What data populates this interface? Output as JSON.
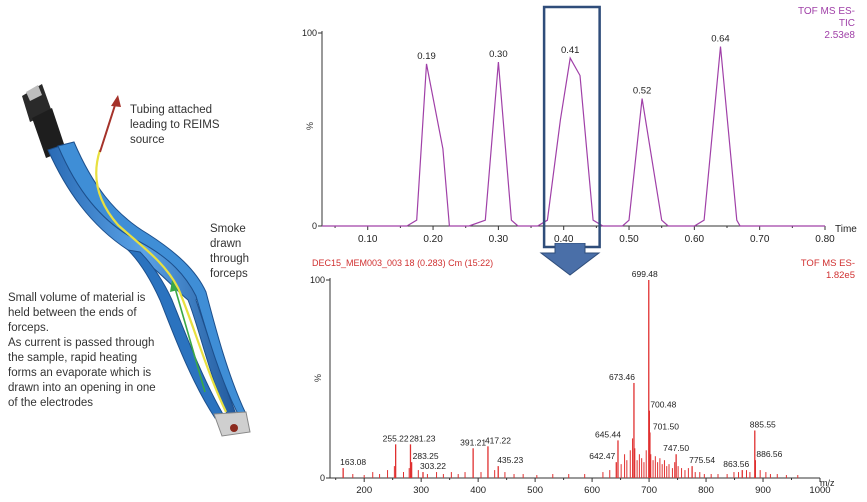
{
  "annotations": {
    "tubing": [
      "Tubing attached",
      "leading to REIMS",
      "source"
    ],
    "smoke": [
      "Smoke",
      "drawn",
      "through",
      "forceps"
    ],
    "material": [
      "Small volume of material is",
      "held between the ends of",
      "forceps.",
      "As current is passed through",
      "the sample, rapid heating",
      "forms an evaporate which is",
      "drawn into an opening in one",
      "of the electrodes"
    ]
  },
  "colors": {
    "tic_line": "#a040a8",
    "spectrum": "#e03030",
    "box": "#2f4d7a",
    "arrow": "#4a6fa8",
    "forceps": "#3a7fc8",
    "tube": "#e8e040"
  },
  "chart_data": [
    {
      "type": "line",
      "title": "",
      "top_right": [
        "TOF MS ES-",
        "TIC",
        "2.53e8"
      ],
      "xlabel": "Time",
      "ylabel": "%",
      "xlim": [
        0.03,
        0.8
      ],
      "ylim": [
        0,
        100
      ],
      "xticks": [
        "0.10",
        "0.20",
        "0.30",
        "0.40",
        "0.50",
        "0.60",
        "0.70",
        "0.80"
      ],
      "xtick_values": [
        0.1,
        0.2,
        0.3,
        0.4,
        0.5,
        0.6,
        0.7,
        0.8
      ],
      "yticks": [
        "0",
        "100"
      ],
      "ytick_values": [
        0,
        100
      ],
      "x": [
        0.03,
        0.16,
        0.175,
        0.19,
        0.215,
        0.225,
        0.255,
        0.28,
        0.3,
        0.32,
        0.33,
        0.36,
        0.375,
        0.395,
        0.41,
        0.425,
        0.445,
        0.46,
        0.49,
        0.5,
        0.52,
        0.55,
        0.56,
        0.6,
        0.615,
        0.64,
        0.665,
        0.67,
        0.8
      ],
      "y": [
        0,
        0,
        3,
        84,
        40,
        0,
        0,
        3,
        85,
        3,
        0,
        0,
        3,
        55,
        87,
        78,
        3,
        0,
        0,
        3,
        66,
        3,
        0,
        0,
        3,
        93,
        3,
        0,
        0
      ],
      "peak_labels": [
        {
          "x": 0.19,
          "y": 84,
          "text": "0.19"
        },
        {
          "x": 0.3,
          "y": 85,
          "text": "0.30"
        },
        {
          "x": 0.41,
          "y": 87,
          "text": "0.41"
        },
        {
          "x": 0.52,
          "y": 66,
          "text": "0.52"
        },
        {
          "x": 0.64,
          "y": 93,
          "text": "0.64"
        }
      ],
      "selection": [
        0.37,
        0.455
      ]
    },
    {
      "type": "bar",
      "title": "DEC15_MEM003_003 18 (0.283) Cm (15:22)",
      "top_right": [
        "TOF MS ES-",
        "1.82e5"
      ],
      "xlabel": "m/z",
      "ylabel": "%",
      "xlim": [
        140,
        1000
      ],
      "ylim": [
        0,
        100
      ],
      "xticks": [
        "200",
        "300",
        "400",
        "500",
        "600",
        "700",
        "800",
        "900",
        "1000"
      ],
      "xtick_values": [
        200,
        300,
        400,
        500,
        600,
        700,
        800,
        900,
        1000
      ],
      "yticks": [
        "0",
        "100"
      ],
      "ytick_values": [
        0,
        100
      ],
      "peaks": [
        {
          "x": 163.08,
          "y": 5,
          "text": "163.08"
        },
        {
          "x": 255.22,
          "y": 17,
          "text": "255.22"
        },
        {
          "x": 281.23,
          "y": 17,
          "text": "281.23"
        },
        {
          "x": 283.25,
          "y": 8,
          "text": "283.25"
        },
        {
          "x": 303.22,
          "y": 3,
          "text": "303.22"
        },
        {
          "x": 391.21,
          "y": 15,
          "text": "391.21"
        },
        {
          "x": 417.22,
          "y": 16,
          "text": "417.22"
        },
        {
          "x": 435.23,
          "y": 6,
          "text": "435.23"
        },
        {
          "x": 642.47,
          "y": 8,
          "text": "642.47"
        },
        {
          "x": 645.44,
          "y": 19,
          "text": "645.44"
        },
        {
          "x": 673.46,
          "y": 48,
          "text": "673.46"
        },
        {
          "x": 699.48,
          "y": 100,
          "text": "699.48"
        },
        {
          "x": 700.48,
          "y": 34,
          "text": "700.48"
        },
        {
          "x": 701.5,
          "y": 23,
          "text": "701.50"
        },
        {
          "x": 747.5,
          "y": 12,
          "text": "747.50"
        },
        {
          "x": 775.54,
          "y": 6,
          "text": "775.54"
        },
        {
          "x": 863.56,
          "y": 4,
          "text": "863.56"
        },
        {
          "x": 885.55,
          "y": 24,
          "text": "885.55"
        },
        {
          "x": 886.56,
          "y": 9,
          "text": "886.56"
        }
      ],
      "minor_peaks": [
        {
          "x": 180,
          "y": 2
        },
        {
          "x": 200,
          "y": 1.5
        },
        {
          "x": 215,
          "y": 3
        },
        {
          "x": 227,
          "y": 2
        },
        {
          "x": 241,
          "y": 4
        },
        {
          "x": 253,
          "y": 6
        },
        {
          "x": 269,
          "y": 3
        },
        {
          "x": 279,
          "y": 5
        },
        {
          "x": 295,
          "y": 4
        },
        {
          "x": 311,
          "y": 2
        },
        {
          "x": 327,
          "y": 3
        },
        {
          "x": 339,
          "y": 2
        },
        {
          "x": 353,
          "y": 3
        },
        {
          "x": 365,
          "y": 2
        },
        {
          "x": 377,
          "y": 3
        },
        {
          "x": 405,
          "y": 3
        },
        {
          "x": 429,
          "y": 4
        },
        {
          "x": 447,
          "y": 3
        },
        {
          "x": 463,
          "y": 2
        },
        {
          "x": 479,
          "y": 2
        },
        {
          "x": 503,
          "y": 1.5
        },
        {
          "x": 531,
          "y": 2
        },
        {
          "x": 559,
          "y": 2
        },
        {
          "x": 587,
          "y": 2
        },
        {
          "x": 619,
          "y": 3
        },
        {
          "x": 631,
          "y": 4
        },
        {
          "x": 651,
          "y": 7
        },
        {
          "x": 657,
          "y": 12
        },
        {
          "x": 661,
          "y": 9
        },
        {
          "x": 667,
          "y": 14
        },
        {
          "x": 671,
          "y": 20
        },
        {
          "x": 675,
          "y": 15
        },
        {
          "x": 679,
          "y": 9
        },
        {
          "x": 683,
          "y": 12
        },
        {
          "x": 687,
          "y": 10
        },
        {
          "x": 691,
          "y": 8
        },
        {
          "x": 695,
          "y": 14
        },
        {
          "x": 703,
          "y": 12
        },
        {
          "x": 707,
          "y": 9
        },
        {
          "x": 711,
          "y": 11
        },
        {
          "x": 715,
          "y": 8
        },
        {
          "x": 719,
          "y": 10
        },
        {
          "x": 723,
          "y": 7
        },
        {
          "x": 727,
          "y": 9
        },
        {
          "x": 731,
          "y": 6
        },
        {
          "x": 735,
          "y": 7
        },
        {
          "x": 741,
          "y": 5
        },
        {
          "x": 745,
          "y": 8
        },
        {
          "x": 751,
          "y": 6
        },
        {
          "x": 757,
          "y": 5
        },
        {
          "x": 763,
          "y": 4
        },
        {
          "x": 769,
          "y": 5
        },
        {
          "x": 781,
          "y": 3
        },
        {
          "x": 789,
          "y": 3
        },
        {
          "x": 797,
          "y": 2
        },
        {
          "x": 809,
          "y": 2
        },
        {
          "x": 821,
          "y": 2
        },
        {
          "x": 837,
          "y": 2
        },
        {
          "x": 849,
          "y": 3
        },
        {
          "x": 857,
          "y": 3
        },
        {
          "x": 871,
          "y": 4
        },
        {
          "x": 877,
          "y": 3
        },
        {
          "x": 895,
          "y": 4
        },
        {
          "x": 905,
          "y": 3
        },
        {
          "x": 913,
          "y": 2
        },
        {
          "x": 925,
          "y": 2
        },
        {
          "x": 941,
          "y": 1.5
        },
        {
          "x": 961,
          "y": 1.5
        }
      ]
    }
  ]
}
